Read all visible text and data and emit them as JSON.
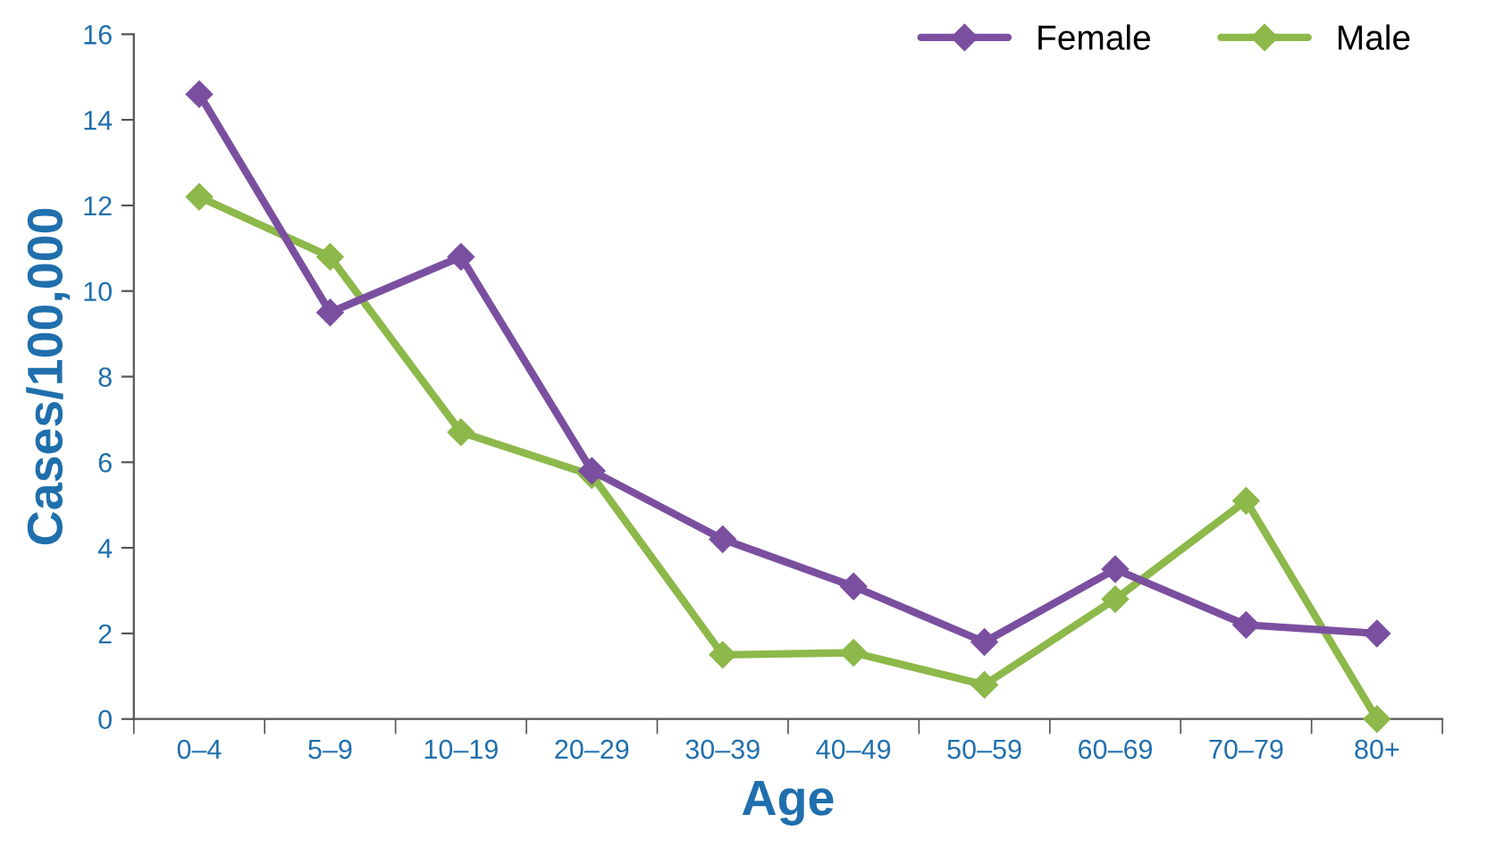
{
  "chart_data": {
    "type": "line",
    "xlabel": "Age",
    "ylabel": "Cases/100,000",
    "categories": [
      "0–4",
      "5–9",
      "10–19",
      "20–29",
      "30–39",
      "40–49",
      "50–59",
      "60–69",
      "70–79",
      "80+"
    ],
    "series": [
      {
        "name": "Female",
        "color": "#7b4fa0",
        "values": [
          14.6,
          9.5,
          10.8,
          5.8,
          4.2,
          3.1,
          1.8,
          3.5,
          2.2,
          2.0
        ]
      },
      {
        "name": "Male",
        "color": "#8db84a",
        "values": [
          12.2,
          10.8,
          6.7,
          5.7,
          1.5,
          1.55,
          0.8,
          2.8,
          5.1,
          0.0
        ]
      }
    ],
    "ylim": [
      0,
      16
    ],
    "yticks": [
      0,
      2,
      4,
      6,
      8,
      10,
      12,
      14,
      16
    ],
    "marker": "diamond",
    "line_style": "solid",
    "grid": false,
    "legend": "top right"
  }
}
